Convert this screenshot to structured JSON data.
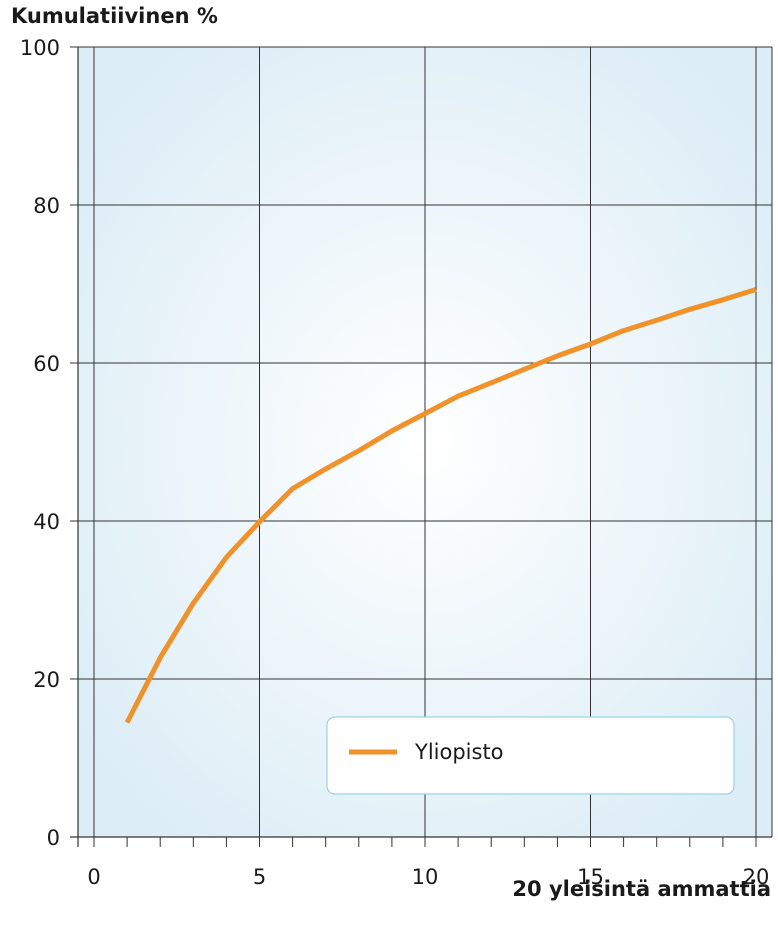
{
  "chart_data": {
    "type": "line",
    "ylabel": "Kumulatiivinen %",
    "xlabel": "20 yleisintä ammattia",
    "xlim": [
      0,
      20
    ],
    "ylim": [
      0,
      100
    ],
    "x_ticks": [
      0,
      5,
      10,
      15,
      20
    ],
    "y_ticks": [
      0,
      20,
      40,
      60,
      80,
      100
    ],
    "x_minor_ticks": [
      0,
      1,
      2,
      3,
      4,
      5,
      6,
      7,
      8,
      9,
      10,
      11,
      12,
      13,
      14,
      15,
      16,
      17,
      18,
      19,
      20
    ],
    "grid": true,
    "legend_position": "bottom-right",
    "series": [
      {
        "name": "Yliopisto",
        "color": "#f0912a",
        "x": [
          1,
          2,
          3,
          4,
          5,
          6,
          7,
          8,
          9,
          10,
          11,
          12,
          13,
          14,
          15,
          16,
          17,
          18,
          19,
          20
        ],
        "y": [
          14.5,
          22.7,
          29.6,
          35.4,
          39.9,
          44.1,
          46.6,
          48.9,
          51.4,
          53.6,
          55.8,
          57.5,
          59.2,
          60.9,
          62.4,
          64.1,
          65.4,
          66.8,
          68.0,
          69.3
        ]
      }
    ],
    "colors": {
      "plot_center": "#ffffff",
      "plot_edge": "#dcedf6",
      "grid": "#333333",
      "legend_border": "#9dd3e6"
    }
  }
}
